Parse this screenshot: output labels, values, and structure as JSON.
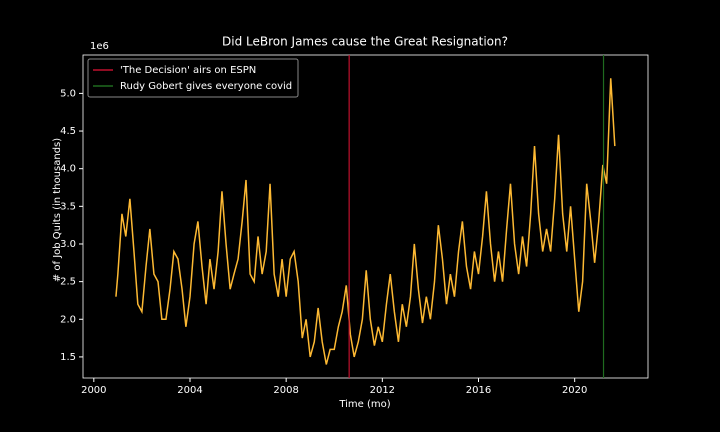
{
  "chart_data": {
    "type": "line",
    "title": "Did LeBron James cause the Great Resignation?",
    "x_label": "Time (mo)",
    "y_label": "# of Job Quits (in thousands)",
    "y_offset_label": "1e6",
    "xlim": [
      1999.55,
      2023.05
    ],
    "ylim": [
      1.22,
      5.51
    ],
    "xticks": [
      2000,
      2004,
      2008,
      2012,
      2016,
      2020
    ],
    "yticks": [
      1.5,
      {
        "value": 2,
        "label": "2.0"
      },
      2.5,
      {
        "value": 3,
        "label": "3.0"
      },
      3.5,
      {
        "value": 4,
        "label": "4.0"
      },
      4.5,
      {
        "value": 5,
        "label": "5.0"
      }
    ],
    "legend_position": "upper left",
    "x": [
      2000.92,
      2001.0,
      2001.17,
      2001.33,
      2001.5,
      2001.67,
      2001.83,
      2002.0,
      2002.17,
      2002.33,
      2002.5,
      2002.67,
      2002.83,
      2003.0,
      2003.17,
      2003.33,
      2003.5,
      2003.67,
      2003.83,
      2004.0,
      2004.17,
      2004.33,
      2004.5,
      2004.67,
      2004.83,
      2005.0,
      2005.17,
      2005.33,
      2005.5,
      2005.67,
      2005.83,
      2006.0,
      2006.17,
      2006.33,
      2006.5,
      2006.67,
      2006.83,
      2007.0,
      2007.17,
      2007.33,
      2007.5,
      2007.67,
      2007.83,
      2008.0,
      2008.17,
      2008.33,
      2008.5,
      2008.67,
      2008.83,
      2009.0,
      2009.17,
      2009.33,
      2009.5,
      2009.67,
      2009.83,
      2010.0,
      2010.17,
      2010.33,
      2010.5,
      2010.67,
      2010.83,
      2011.0,
      2011.17,
      2011.33,
      2011.5,
      2011.67,
      2011.83,
      2012.0,
      2012.17,
      2012.33,
      2012.5,
      2012.67,
      2012.83,
      2013.0,
      2013.17,
      2013.33,
      2013.5,
      2013.67,
      2013.83,
      2014.0,
      2014.17,
      2014.33,
      2014.5,
      2014.67,
      2014.83,
      2015.0,
      2015.17,
      2015.33,
      2015.5,
      2015.67,
      2015.83,
      2016.0,
      2016.17,
      2016.33,
      2016.5,
      2016.67,
      2016.83,
      2017.0,
      2017.17,
      2017.33,
      2017.5,
      2017.67,
      2017.83,
      2018.0,
      2018.17,
      2018.33,
      2018.5,
      2018.67,
      2018.83,
      2019.0,
      2019.17,
      2019.33,
      2019.5,
      2019.67,
      2019.83,
      2020.0,
      2020.17,
      2020.33,
      2020.5,
      2020.67,
      2020.83,
      2021.0,
      2021.17,
      2021.33,
      2021.5,
      2021.67
    ],
    "series": [
      {
        "color": "#fdb933",
        "values": [
          2.3,
          2.6,
          3.4,
          3.1,
          3.6,
          2.9,
          2.2,
          2.1,
          2.7,
          3.2,
          2.6,
          2.5,
          2.0,
          2.0,
          2.4,
          2.9,
          2.8,
          2.4,
          1.9,
          2.3,
          3.0,
          3.3,
          2.7,
          2.2,
          2.8,
          2.4,
          2.9,
          3.7,
          3.0,
          2.4,
          2.6,
          2.8,
          3.3,
          3.85,
          2.6,
          2.5,
          3.1,
          2.6,
          2.9,
          3.8,
          2.6,
          2.3,
          2.8,
          2.3,
          2.8,
          2.9,
          2.5,
          1.75,
          2.0,
          1.5,
          1.7,
          2.15,
          1.7,
          1.4,
          1.6,
          1.6,
          1.9,
          2.1,
          2.45,
          1.8,
          1.5,
          1.7,
          2.0,
          2.65,
          2.0,
          1.65,
          1.9,
          1.7,
          2.2,
          2.6,
          2.1,
          1.7,
          2.2,
          1.9,
          2.3,
          3.0,
          2.4,
          1.95,
          2.3,
          2.0,
          2.5,
          3.25,
          2.8,
          2.2,
          2.6,
          2.3,
          2.9,
          3.3,
          2.7,
          2.4,
          2.9,
          2.6,
          3.1,
          3.7,
          3.0,
          2.5,
          2.9,
          2.5,
          3.2,
          3.8,
          3.0,
          2.6,
          3.1,
          2.7,
          3.4,
          4.3,
          3.4,
          2.9,
          3.2,
          2.9,
          3.6,
          4.45,
          3.4,
          2.9,
          3.5,
          2.8,
          2.1,
          2.5,
          3.8,
          3.3,
          2.75,
          3.3,
          4.05,
          3.8,
          5.2,
          4.3
        ]
      }
    ],
    "vlines": [
      {
        "x": 2010.62,
        "name": "'The Decision' airs on ESPN",
        "color": "#c0112d"
      },
      {
        "x": 2021.2,
        "name": "Rudy Gobert gives everyone covid",
        "color": "#1f6b1f"
      }
    ]
  }
}
